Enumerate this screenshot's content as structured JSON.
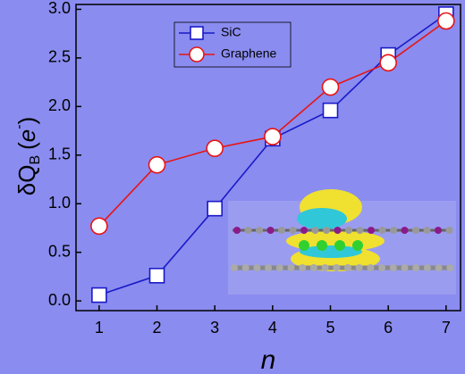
{
  "chart_data": {
    "type": "line",
    "x_label": "n",
    "y_label_parts": [
      "δQ",
      "B",
      "(",
      "e",
      "-",
      ")"
    ],
    "x": [
      1,
      2,
      3,
      4,
      5,
      6,
      7
    ],
    "series": [
      {
        "name": "SiC",
        "color": "#1a1ac8",
        "marker": "square",
        "values": [
          0.06,
          0.26,
          0.95,
          1.67,
          1.96,
          2.53,
          2.95
        ]
      },
      {
        "name": "Graphene",
        "color": "#e81414",
        "marker": "circle",
        "values": [
          0.77,
          1.4,
          1.57,
          1.69,
          2.2,
          2.45,
          2.88
        ]
      }
    ],
    "xlim": [
      0.6,
      7.25
    ],
    "ylim": [
      -0.1,
      3.05
    ],
    "xticks": [
      1,
      2,
      3,
      4,
      5,
      6,
      7
    ],
    "yticks": [
      {
        "value": 0,
        "label": "0.0"
      },
      {
        "value": 0.5,
        "label": "0.5"
      },
      {
        "value": 1,
        "label": "1.0"
      },
      {
        "value": 1.5,
        "label": "1.5"
      },
      {
        "value": 2,
        "label": "2.0"
      },
      {
        "value": 2.5,
        "label": "2.5"
      },
      {
        "value": 3,
        "label": "3.0"
      }
    ],
    "grid": false,
    "legend": "upper-center"
  }
}
